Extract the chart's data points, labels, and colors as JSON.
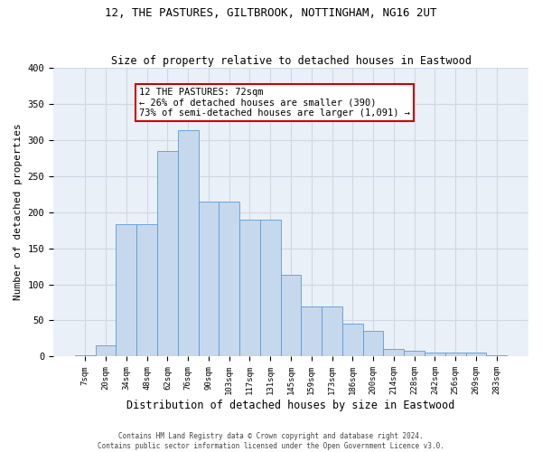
{
  "title1": "12, THE PASTURES, GILTBROOK, NOTTINGHAM, NG16 2UT",
  "title2": "Size of property relative to detached houses in Eastwood",
  "xlabel": "Distribution of detached houses by size in Eastwood",
  "ylabel": "Number of detached properties",
  "categories": [
    "7sqm",
    "20sqm",
    "34sqm",
    "48sqm",
    "62sqm",
    "76sqm",
    "90sqm",
    "103sqm",
    "117sqm",
    "131sqm",
    "145sqm",
    "159sqm",
    "173sqm",
    "186sqm",
    "200sqm",
    "214sqm",
    "228sqm",
    "242sqm",
    "256sqm",
    "269sqm",
    "283sqm"
  ],
  "values": [
    2,
    15,
    183,
    183,
    285,
    313,
    215,
    215,
    190,
    190,
    113,
    70,
    70,
    45,
    35,
    10,
    8,
    6,
    5,
    6,
    2
  ],
  "bar_color": "#c5d8ec",
  "bar_edge_color": "#5b9bd5",
  "annotation_text": "12 THE PASTURES: 72sqm\n← 26% of detached houses are smaller (390)\n73% of semi-detached houses are larger (1,091) →",
  "annotation_box_color": "#ffffff",
  "annotation_box_edge_color": "#cc0000",
  "ylim": [
    0,
    400
  ],
  "yticks": [
    0,
    50,
    100,
    150,
    200,
    250,
    300,
    350,
    400
  ],
  "grid_color": "#d0d8e4",
  "bg_color": "#eaf0f8",
  "footer1": "Contains HM Land Registry data © Crown copyright and database right 2024.",
  "footer2": "Contains public sector information licensed under the Open Government Licence v3.0."
}
